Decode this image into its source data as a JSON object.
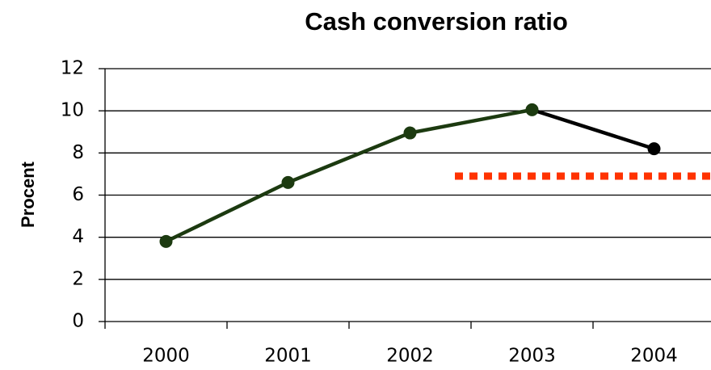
{
  "chart_data": {
    "type": "line",
    "title": "Cash conversion ratio",
    "y_label": "Procent",
    "categories": [
      "2000",
      "2001",
      "2002",
      "2003",
      "2004"
    ],
    "series": [
      {
        "values": [
          3.8,
          6.6,
          8.95,
          10.05,
          8.2
        ],
        "color": "#1c3a10",
        "point_colors": [
          "#1c3a10",
          "#1c3a10",
          "#1c3a10",
          "#1c3a10",
          "#000000"
        ]
      }
    ],
    "reference_line": {
      "value": 6.9,
      "color": "#ff3300"
    },
    "ylim": [
      0,
      12
    ],
    "yticks": [
      0,
      2,
      4,
      6,
      8,
      10,
      12
    ],
    "grid": true
  }
}
